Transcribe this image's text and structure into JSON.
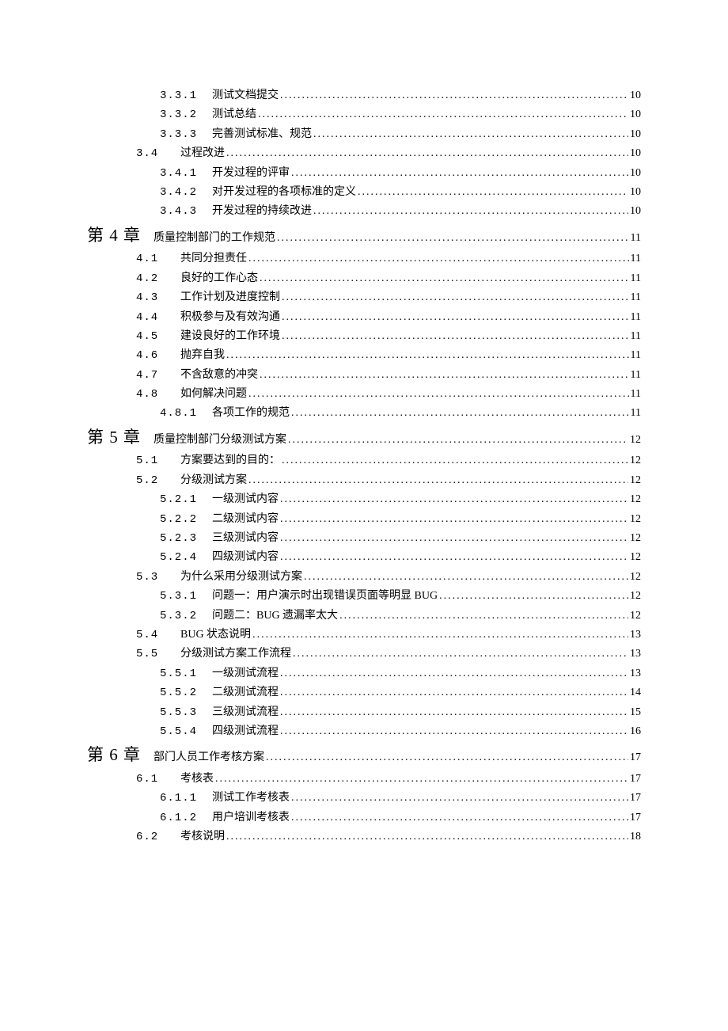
{
  "dots": "..............................................................................................................................................................",
  "items": [
    {
      "type": "l2",
      "num": "3.3.1",
      "title": "测试文档提交",
      "page": "10"
    },
    {
      "type": "l2",
      "num": "3.3.2",
      "title": "测试总结",
      "page": "10"
    },
    {
      "type": "l2",
      "num": "3.3.3",
      "title": "完善测试标准、规范",
      "page": "10"
    },
    {
      "type": "l1",
      "num": "3.4",
      "title": "过程改进",
      "page": "10"
    },
    {
      "type": "l2",
      "num": "3.4.1",
      "title": "开发过程的评审",
      "page": "10"
    },
    {
      "type": "l2",
      "num": "3.4.2",
      "title": "对开发过程的各项标准的定义",
      "page": "10"
    },
    {
      "type": "l2",
      "num": "3.4.3",
      "title": "开发过程的持续改进",
      "page": "10"
    },
    {
      "type": "chapter",
      "num": "第 4 章",
      "title": "质量控制部门的工作规范",
      "page": "11"
    },
    {
      "type": "l1",
      "num": "4.1",
      "title": "共同分担责任",
      "page": "11"
    },
    {
      "type": "l1",
      "num": "4.2",
      "title": "良好的工作心态",
      "page": "11"
    },
    {
      "type": "l1",
      "num": "4.3",
      "title": "工作计划及进度控制",
      "page": "11"
    },
    {
      "type": "l1",
      "num": "4.4",
      "title": "积极参与及有效沟通",
      "page": "11"
    },
    {
      "type": "l1",
      "num": "4.5",
      "title": "建设良好的工作环境",
      "page": "11"
    },
    {
      "type": "l1",
      "num": "4.6",
      "title": "抛弃自我",
      "page": "11"
    },
    {
      "type": "l1",
      "num": "4.7",
      "title": "不含敌意的冲突",
      "page": "11"
    },
    {
      "type": "l1",
      "num": "4.8",
      "title": "如何解决问题",
      "page": "11"
    },
    {
      "type": "l2",
      "num": "4.8.1",
      "title": "各项工作的规范",
      "page": "11"
    },
    {
      "type": "chapter",
      "num": "第 5 章",
      "title": "质量控制部门分级测试方案",
      "page": "12"
    },
    {
      "type": "l1",
      "num": "5.1",
      "title": "方案要达到的目的：",
      "page": "12"
    },
    {
      "type": "l1",
      "num": "5.2",
      "title": "分级测试方案",
      "page": "12"
    },
    {
      "type": "l2",
      "num": "5.2.1",
      "title": "一级测试内容",
      "page": "12"
    },
    {
      "type": "l2",
      "num": "5.2.2",
      "title": "二级测试内容",
      "page": "12"
    },
    {
      "type": "l2",
      "num": "5.2.3",
      "title": "三级测试内容",
      "page": "12"
    },
    {
      "type": "l2",
      "num": "5.2.4",
      "title": "四级测试内容",
      "page": "12"
    },
    {
      "type": "l1",
      "num": "5.3",
      "title": "为什么采用分级测试方案",
      "page": "12"
    },
    {
      "type": "l2",
      "num": "5.3.1",
      "title": "问题一：用户演示时出现错误页面等明显 BUG",
      "page": "12"
    },
    {
      "type": "l2",
      "num": "5.3.2",
      "title": "问题二：BUG 遗漏率太大",
      "page": "12"
    },
    {
      "type": "l1",
      "num": "5.4",
      "title": "BUG 状态说明",
      "page": "13"
    },
    {
      "type": "l1",
      "num": "5.5",
      "title": "分级测试方案工作流程",
      "page": "13"
    },
    {
      "type": "l2",
      "num": "5.5.1",
      "title": "一级测试流程",
      "page": "13"
    },
    {
      "type": "l2",
      "num": "5.5.2",
      "title": "二级测试流程",
      "page": "14"
    },
    {
      "type": "l2",
      "num": "5.5.3",
      "title": "三级测试流程",
      "page": "15"
    },
    {
      "type": "l2",
      "num": "5.5.4",
      "title": "四级测试流程",
      "page": "16"
    },
    {
      "type": "chapter",
      "num": "第 6 章",
      "title": "部门人员工作考核方案",
      "page": "17"
    },
    {
      "type": "l1",
      "num": "6.1",
      "title": "考核表",
      "page": "17"
    },
    {
      "type": "l2",
      "num": "6.1.1",
      "title": "测试工作考核表",
      "page": "17"
    },
    {
      "type": "l2",
      "num": "6.1.2",
      "title": "用户培训考核表",
      "page": "17"
    },
    {
      "type": "l1",
      "num": "6.2",
      "title": "考核说明",
      "page": "18"
    }
  ]
}
